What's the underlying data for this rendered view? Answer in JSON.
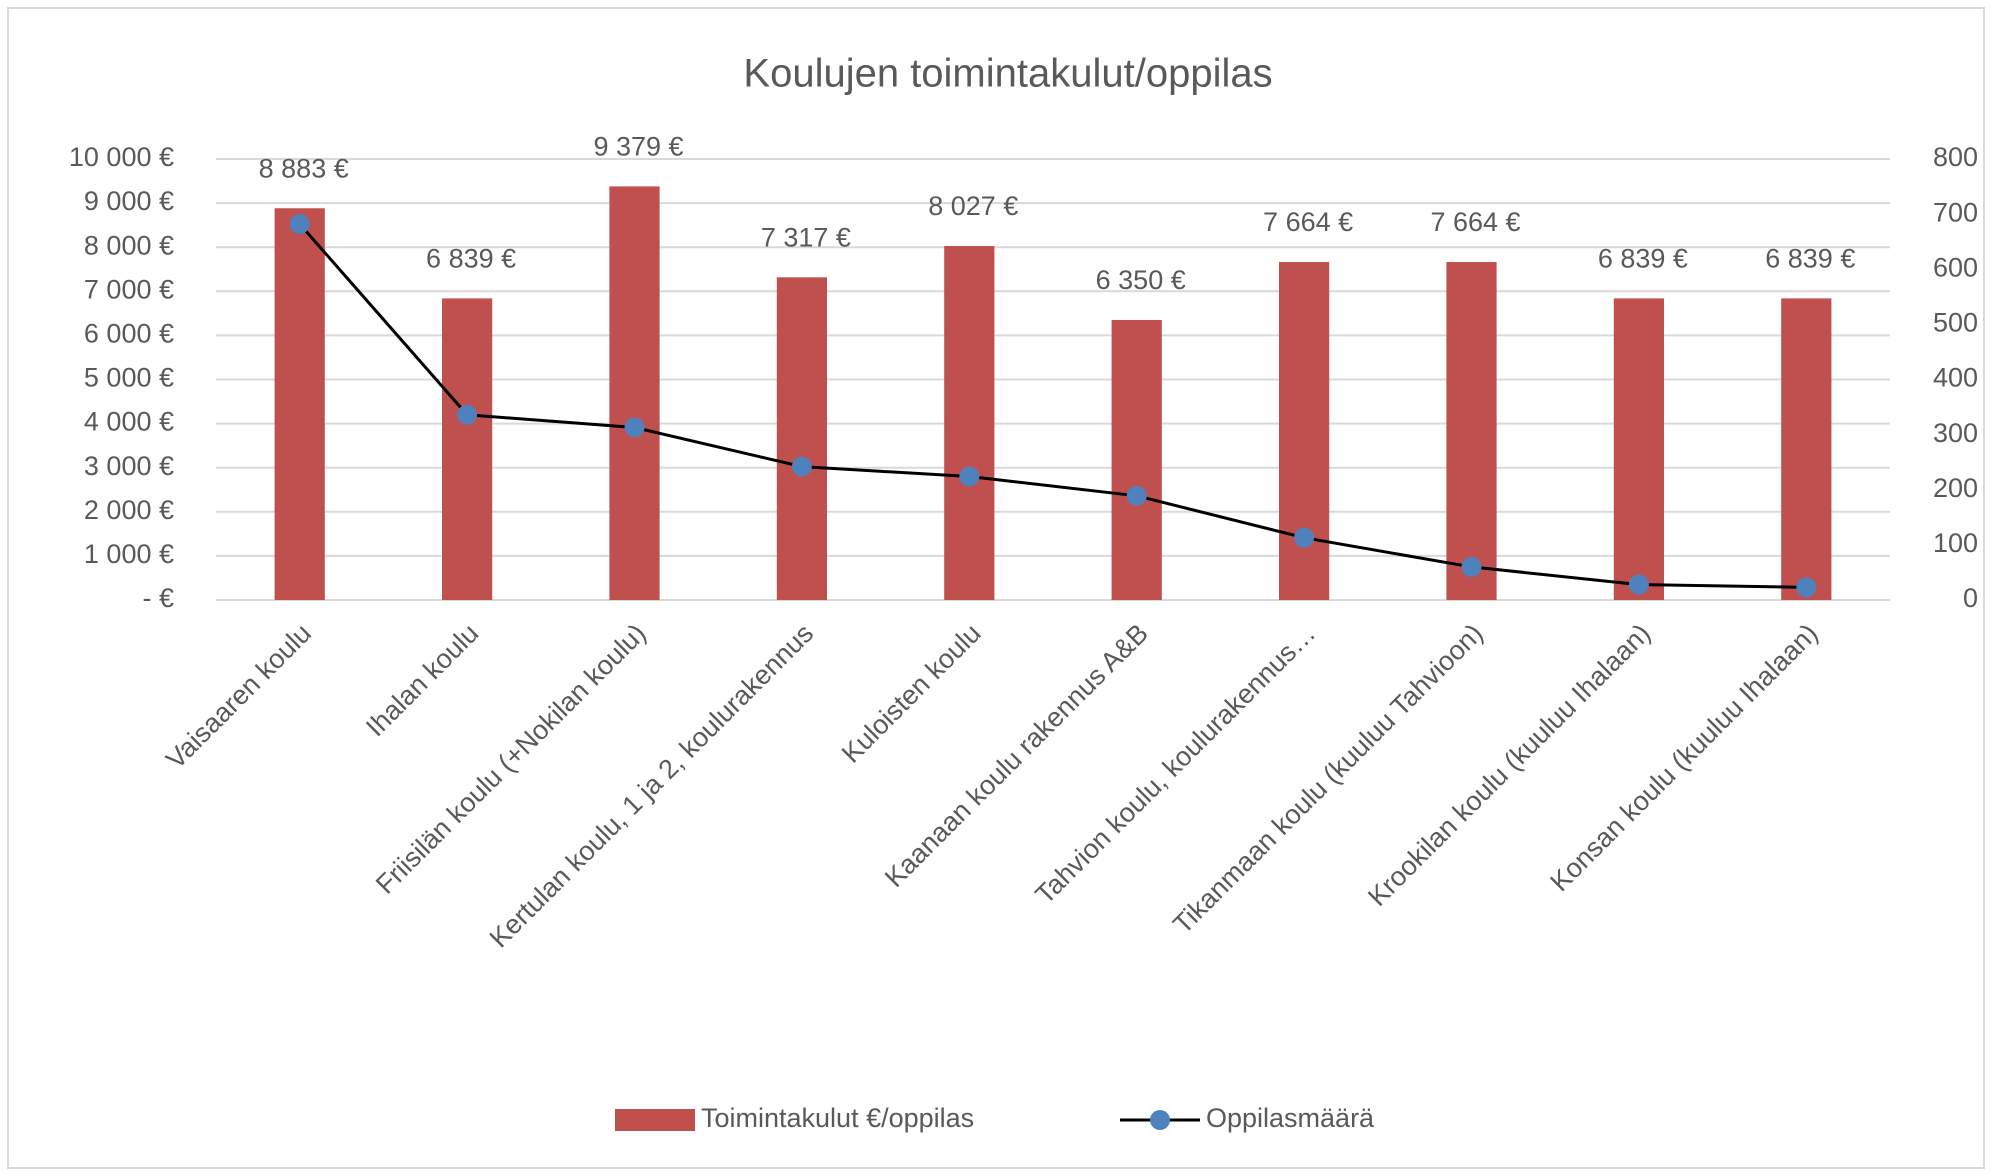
{
  "chart_data": {
    "type": "bar",
    "title": "Koulujen toimintakulut/oppilas",
    "categories": [
      "Vaisaaren koulu",
      "Ihalan koulu",
      "Friisilän koulu (+Nokilan koulu)",
      "Kertulan koulu, 1 ja 2, koulurakennus",
      "Kuloisten koulu",
      "Kaanaan koulu rakennus A&B",
      "Tahvion koulu, koulurakennus…",
      "Tikanmaan koulu (kuuluu Tahvioon)",
      "Krookilan koulu (kuuluu Ihalaan)",
      "Konsan koulu (kuuluu Ihalaan)"
    ],
    "series": [
      {
        "name": "Toimintakulut €/oppilas",
        "type": "bar",
        "color": "#c0504d",
        "values": [
          8883,
          6839,
          9379,
          7317,
          8027,
          6350,
          7664,
          7664,
          6839,
          6839
        ],
        "value_labels": [
          "8 883 €",
          "6 839 €",
          "9 379 €",
          "7 317 €",
          "8 027 €",
          "6 350 €",
          "7 664 €",
          "7 664 €",
          "6 839 €",
          "6 839 €"
        ]
      },
      {
        "name": "Oppilasmäärä",
        "type": "line",
        "axis": "y2",
        "color": "#000000",
        "marker_color": "#4f81bd",
        "values": [
          682,
          336,
          313,
          242,
          224,
          189,
          113,
          60,
          28,
          23
        ]
      }
    ],
    "ylim": [
      0,
      10000
    ],
    "yticks": [
      {
        "value": 0,
        "label": "-  €"
      },
      {
        "value": 1000,
        "label": "1 000 €"
      },
      {
        "value": 2000,
        "label": "2 000 €"
      },
      {
        "value": 3000,
        "label": "3 000 €"
      },
      {
        "value": 4000,
        "label": "4 000 €"
      },
      {
        "value": 5000,
        "label": "5 000 €"
      },
      {
        "value": 6000,
        "label": "6 000 €"
      },
      {
        "value": 7000,
        "label": "7 000 €"
      },
      {
        "value": 8000,
        "label": "8 000 €"
      },
      {
        "value": 9000,
        "label": "9 000 €"
      },
      {
        "value": 10000,
        "label": "10 000 €"
      }
    ],
    "y2lim": [
      0,
      800
    ],
    "y2ticks": [
      0,
      100,
      200,
      300,
      400,
      500,
      600,
      700,
      800
    ],
    "grid": true,
    "legend": "bottom"
  }
}
